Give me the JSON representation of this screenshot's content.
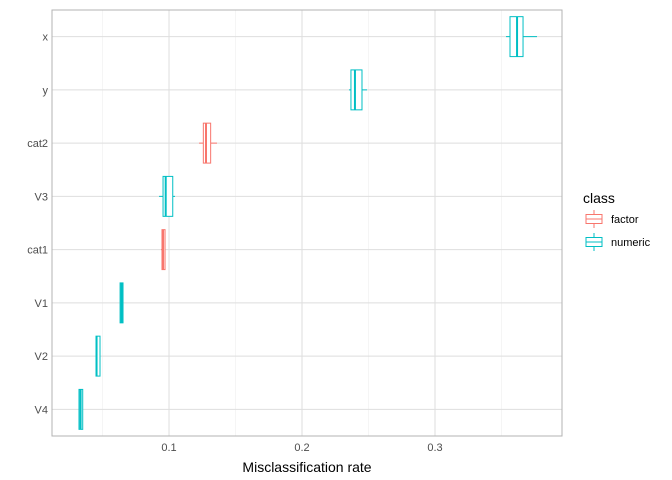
{
  "chart_data": {
    "type": "boxplot",
    "orientation": "horizontal",
    "xlabel": "Misclassification rate",
    "ylabel": "",
    "xlim": [
      0.012,
      0.3955
    ],
    "xticks": [
      0.1,
      0.2,
      0.3
    ],
    "xtick_labels": [
      "0.1",
      "0.2",
      "0.3"
    ],
    "grid": true,
    "legend": {
      "title": "class",
      "position": "right",
      "entries": [
        "factor",
        "numeric"
      ]
    },
    "colors": {
      "factor": "#F8766D",
      "numeric": "#00BFC4"
    },
    "categories": [
      "x",
      "y",
      "cat2",
      "V3",
      "cat1",
      "V1",
      "V2",
      "V4"
    ],
    "boxes": [
      {
        "label": "x",
        "class": "numeric",
        "min": 0.3534,
        "q1": 0.3564,
        "median": 0.3617,
        "q3": 0.3662,
        "max": 0.3767
      },
      {
        "label": "y",
        "class": "numeric",
        "min": 0.2353,
        "q1": 0.2368,
        "median": 0.2398,
        "q3": 0.2451,
        "max": 0.2489
      },
      {
        "label": "cat2",
        "class": "factor",
        "min": 0.1226,
        "q1": 0.1258,
        "median": 0.1278,
        "q3": 0.1313,
        "max": 0.1361
      },
      {
        "label": "V3",
        "class": "numeric",
        "min": 0.0925,
        "q1": 0.0955,
        "median": 0.0975,
        "q3": 0.1028,
        "max": 0.1045
      },
      {
        "label": "cat1",
        "class": "factor",
        "min": 0.094,
        "q1": 0.0947,
        "median": 0.0955,
        "q3": 0.097,
        "max": 0.097
      },
      {
        "label": "V1",
        "class": "numeric",
        "min": 0.0632,
        "q1": 0.0632,
        "median": 0.0643,
        "q3": 0.0654,
        "max": 0.0654
      },
      {
        "label": "V2",
        "class": "numeric",
        "min": 0.0451,
        "q1": 0.0451,
        "median": 0.0455,
        "q3": 0.0481,
        "max": 0.0481
      },
      {
        "label": "V4",
        "class": "numeric",
        "min": 0.0323,
        "q1": 0.0323,
        "median": 0.0335,
        "q3": 0.0351,
        "max": 0.0351
      }
    ]
  }
}
